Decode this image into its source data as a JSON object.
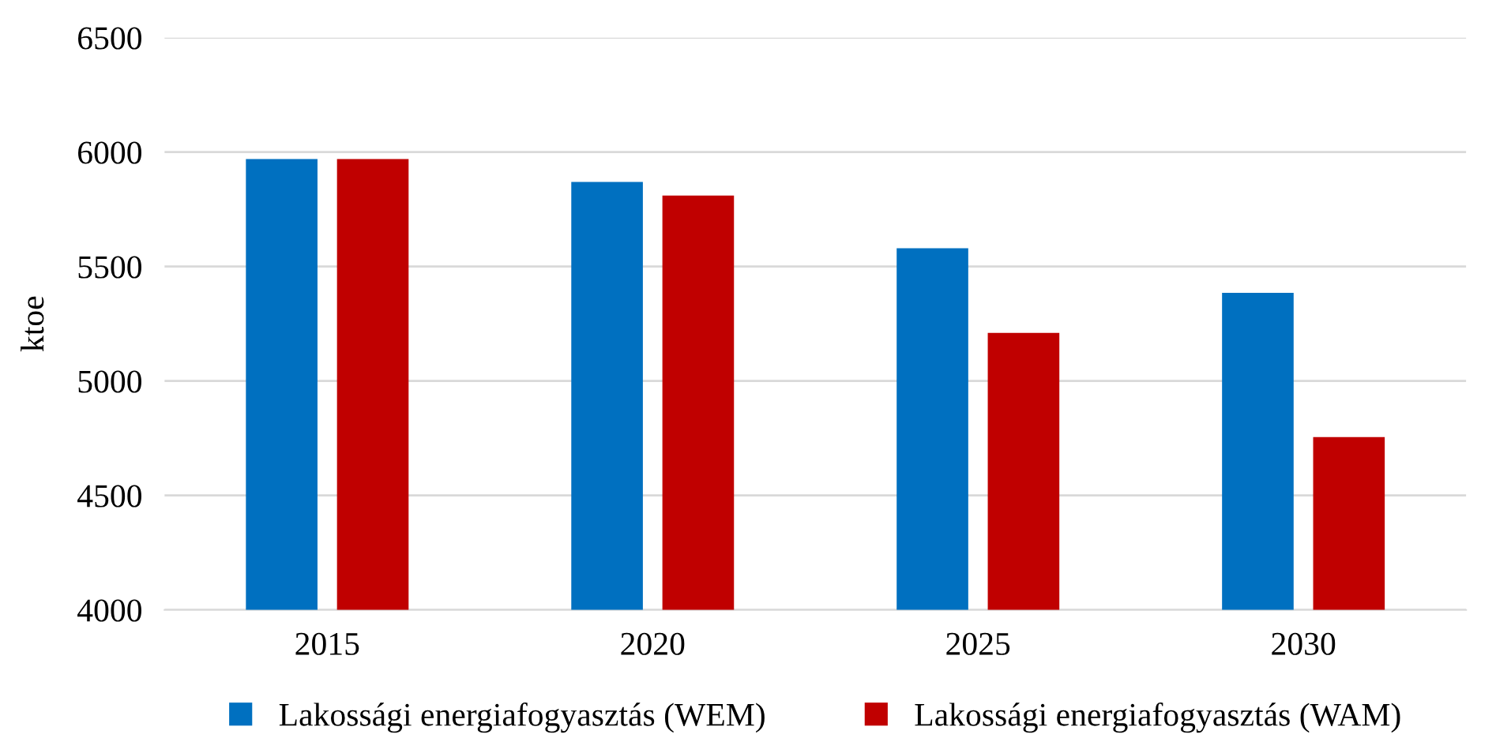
{
  "chart_data": {
    "type": "bar",
    "ylabel": "ktoe",
    "categories": [
      "2015",
      "2020",
      "2025",
      "2030"
    ],
    "series": [
      {
        "name": "Lakossági energiafogyasztás (WEM)",
        "color": "#0070c0",
        "values": [
          5970,
          5870,
          5580,
          5385
        ]
      },
      {
        "name": "Lakossági energiafogyasztás (WAM)",
        "color": "#c00000",
        "values": [
          5970,
          5810,
          5210,
          4755
        ]
      }
    ],
    "ylim": [
      4000,
      6500
    ],
    "yticks": [
      4000,
      4500,
      5000,
      5500,
      6000,
      6500
    ],
    "grid": "y",
    "legend": "bottom"
  }
}
